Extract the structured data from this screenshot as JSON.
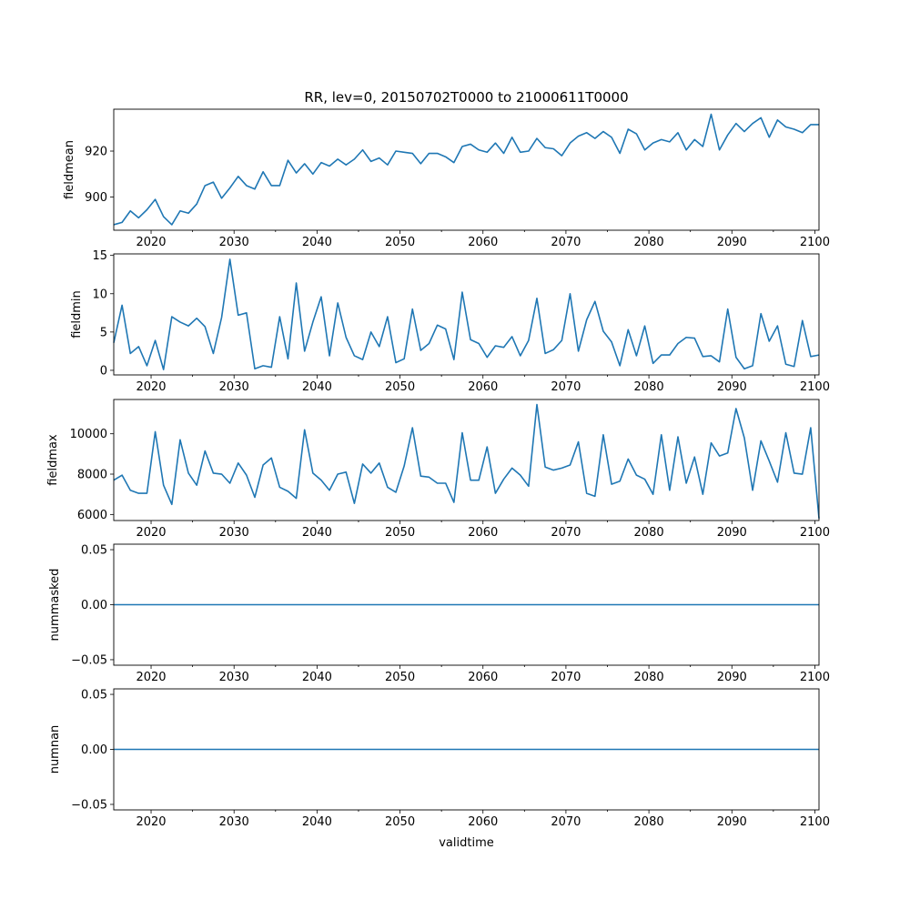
{
  "chart_data": {
    "type": "line",
    "title": "RR, lev=0, 20150702T0000 to 21000611T0000",
    "xlabel": "validtime",
    "xlim": [
      2015.5,
      2100.5
    ],
    "xticks": [
      2020,
      2030,
      2040,
      2050,
      2060,
      2070,
      2080,
      2090,
      2100
    ],
    "xtick_labels": [
      "2020",
      "2030",
      "2040",
      "2050",
      "2060",
      "2070",
      "2080",
      "2090",
      "2100"
    ],
    "x_start": 2015.5,
    "x_step": 1,
    "line_color": "#1f77b4",
    "panels": [
      {
        "id": "fieldmean",
        "ylabel": "fieldmean",
        "ylim": [
          885.6,
          938.2
        ],
        "yticks": [
          900,
          920
        ],
        "ytick_labels": [
          "900",
          "920"
        ],
        "values": [
          888,
          889,
          894,
          891,
          894.5,
          899,
          891.5,
          888,
          894,
          893,
          897,
          905,
          906.5,
          899.5,
          904,
          909,
          905,
          903.5,
          911,
          905,
          905,
          916,
          910.5,
          914.5,
          910,
          915,
          913.5,
          916.5,
          914,
          916.5,
          920.5,
          915.5,
          917,
          914,
          920,
          919.5,
          919,
          914.5,
          919,
          919,
          917.5,
          915,
          922,
          923,
          920.5,
          919.5,
          923.5,
          919,
          926,
          919.5,
          920,
          925.5,
          921.5,
          921,
          918,
          923.5,
          926.5,
          928,
          925.5,
          928.5,
          926,
          919,
          929.5,
          927.5,
          920.5,
          923.5,
          925,
          924,
          928,
          920.5,
          925,
          922,
          936,
          920.5,
          927,
          932,
          928.5,
          932,
          934.5,
          926,
          933.5,
          930.5,
          929.5,
          928,
          931.5,
          931.5
        ]
      },
      {
        "id": "fieldmin",
        "ylabel": "fieldmin",
        "ylim": [
          -0.6,
          15.2
        ],
        "yticks": [
          0,
          5,
          10,
          15
        ],
        "ytick_labels": [
          "0",
          "5",
          "10",
          "15"
        ],
        "values": [
          3.6,
          8.5,
          2.2,
          3.1,
          0.6,
          3.9,
          0.1,
          7.0,
          6.3,
          5.8,
          6.8,
          5.7,
          2.2,
          6.9,
          14.5,
          7.2,
          7.5,
          0.2,
          0.6,
          0.4,
          7.0,
          1.5,
          11.4,
          2.5,
          6.3,
          9.6,
          1.9,
          8.8,
          4.3,
          1.9,
          1.4,
          5.0,
          3.1,
          7.0,
          1.0,
          1.5,
          8.0,
          2.6,
          3.5,
          5.9,
          5.4,
          1.4,
          10.2,
          4.0,
          3.5,
          1.7,
          3.2,
          3.0,
          4.4,
          1.9,
          3.9,
          9.4,
          2.2,
          2.7,
          3.9,
          10.0,
          2.5,
          6.6,
          9.0,
          5.1,
          3.7,
          0.6,
          5.3,
          1.9,
          5.8,
          0.9,
          2.0,
          2.0,
          3.5,
          4.3,
          4.2,
          1.8,
          1.9,
          1.1,
          8.0,
          1.7,
          0.2,
          0.6,
          7.4,
          3.8,
          5.8,
          0.8,
          0.5,
          6.5,
          1.8,
          2.0
        ]
      },
      {
        "id": "fieldmax",
        "ylabel": "fieldmax",
        "ylim": [
          5700,
          11700
        ],
        "yticks": [
          6000,
          8000,
          10000
        ],
        "ytick_labels": [
          "6000",
          "8000",
          "10000"
        ],
        "values": [
          7700,
          7950,
          7200,
          7050,
          7050,
          10100,
          7450,
          6500,
          9700,
          8050,
          7450,
          9150,
          8050,
          8000,
          7550,
          8550,
          7950,
          6850,
          8450,
          8800,
          7350,
          7150,
          6800,
          10200,
          8050,
          7700,
          7200,
          8000,
          8100,
          6550,
          8500,
          8050,
          8550,
          7350,
          7100,
          8400,
          10300,
          7900,
          7850,
          7550,
          7550,
          6600,
          10050,
          7700,
          7700,
          9350,
          7050,
          7750,
          8300,
          7950,
          7400,
          11450,
          8350,
          8200,
          8300,
          8450,
          9600,
          7050,
          6900,
          9950,
          7500,
          7650,
          8750,
          7950,
          7750,
          7000,
          9950,
          7200,
          9850,
          7550,
          8850,
          7000,
          9550,
          8900,
          9050,
          11250,
          9800,
          7200,
          9650,
          8650,
          7600,
          10050,
          8050,
          8000,
          10300,
          5800
        ]
      },
      {
        "id": "nummasked",
        "ylabel": "nummasked",
        "ylim": [
          -0.055,
          0.055
        ],
        "yticks": [
          -0.05,
          0,
          0.05
        ],
        "ytick_labels": [
          "−0.05",
          "0.00",
          "0.05"
        ],
        "constant": 0
      },
      {
        "id": "numnan",
        "ylabel": "numnan",
        "ylim": [
          -0.055,
          0.055
        ],
        "yticks": [
          -0.05,
          0,
          0.05
        ],
        "ytick_labels": [
          "−0.05",
          "0.00",
          "0.05"
        ],
        "constant": 0
      }
    ]
  }
}
